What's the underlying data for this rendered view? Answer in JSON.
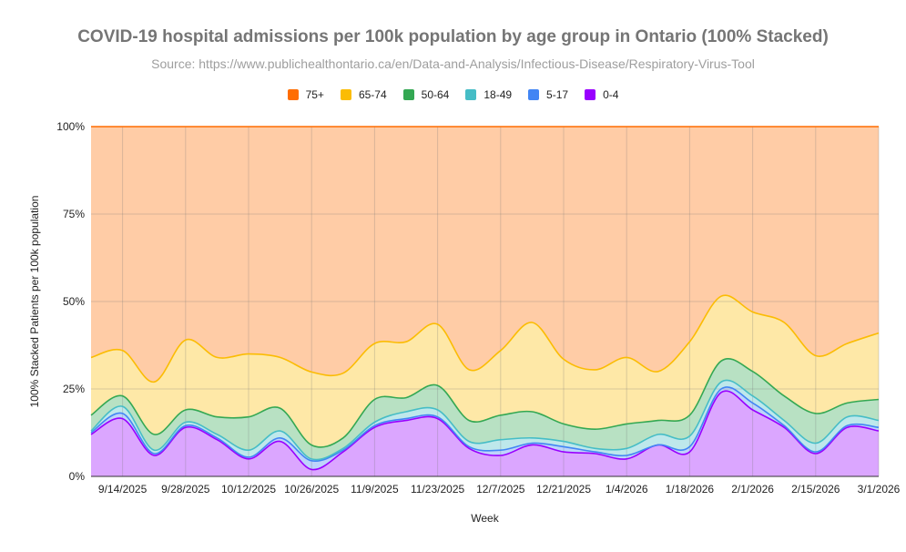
{
  "chart_data": {
    "type": "area",
    "stacking": "percent",
    "title": "COVID-19 hospital admissions per 100k population by age group in Ontario (100% Stacked)",
    "subtitle": "Source: https://www.publichealthontario.ca/en/Data-and-Analysis/Infectious-Disease/Respiratory-Virus-Tool",
    "xlabel": "Week",
    "ylabel": "100% Stacked Patients per 100k population",
    "yticks": [
      "0%",
      "25%",
      "50%",
      "75%",
      "100%"
    ],
    "ylim": [
      0,
      100
    ],
    "x_tick_labels": [
      "9/14/2025",
      "9/28/2025",
      "10/12/2025",
      "10/26/2025",
      "11/9/2025",
      "11/23/2025",
      "12/7/2025",
      "12/21/2025",
      "1/4/2026",
      "1/18/2026",
      "2/1/2026",
      "2/15/2026",
      "3/1/2026"
    ],
    "weeks": [
      "9/7/2025",
      "9/14/2025",
      "9/21/2025",
      "9/28/2025",
      "10/5/2025",
      "10/12/2025",
      "10/19/2025",
      "10/26/2025",
      "11/2/2025",
      "11/9/2025",
      "11/16/2025",
      "11/23/2025",
      "11/30/2025",
      "12/7/2025",
      "12/14/2025",
      "12/21/2025",
      "12/28/2025",
      "1/4/2026",
      "1/11/2026",
      "1/18/2026",
      "1/25/2026",
      "2/1/2026",
      "2/8/2026",
      "2/15/2026",
      "2/22/2026",
      "3/1/2026"
    ],
    "legend_position": "top",
    "series": [
      {
        "name": "0-4",
        "color": "#9900ff",
        "values": [
          12,
          16.5,
          6,
          14,
          10.5,
          5,
          10,
          2,
          7,
          14,
          16,
          16.5,
          8,
          6,
          9,
          7,
          6.5,
          5,
          9,
          7,
          24,
          19,
          14,
          6.5,
          14,
          13
        ]
      },
      {
        "name": "5-17",
        "color": "#4285f4",
        "values": [
          0.5,
          1.5,
          0.5,
          0.5,
          0.5,
          0.5,
          1,
          2.5,
          0.5,
          0.5,
          0.5,
          0.5,
          0.5,
          1.5,
          0.5,
          1.5,
          0.5,
          1,
          0,
          1.5,
          1,
          2,
          0.5,
          0.5,
          0.5,
          1
        ]
      },
      {
        "name": "18-49",
        "color": "#46bdc6",
        "values": [
          0.5,
          2,
          1,
          1,
          1,
          2,
          2,
          0.5,
          0.5,
          1,
          2,
          2,
          1.5,
          3,
          1.5,
          1.5,
          1,
          2,
          3,
          3,
          2,
          2,
          1.5,
          2.5,
          2.5,
          2
        ]
      },
      {
        "name": "50-64",
        "color": "#34a853",
        "values": [
          4.5,
          3,
          4.5,
          3.5,
          5,
          9.5,
          6.5,
          4,
          3,
          6.5,
          4,
          7,
          6,
          7,
          7.5,
          5,
          5.5,
          7,
          4,
          6,
          6,
          7,
          7,
          8.5,
          4,
          6
        ]
      },
      {
        "name": "65-74",
        "color": "#fbbc04",
        "values": [
          16.5,
          13,
          15,
          20,
          17,
          18,
          14.5,
          21,
          18.5,
          16,
          16,
          17.5,
          14.5,
          18.5,
          25.5,
          18.5,
          17,
          19,
          14,
          21,
          18.5,
          17,
          21,
          16.5,
          17,
          19
        ]
      },
      {
        "name": "75+",
        "color": "#ff6d01",
        "values": [
          66,
          64,
          73,
          61,
          66,
          65,
          66,
          70.5,
          70.5,
          62,
          61.5,
          56.5,
          69.5,
          64,
          56,
          66.5,
          69.5,
          66,
          70,
          61.5,
          48.5,
          53,
          56,
          65.5,
          62,
          59
        ]
      }
    ]
  }
}
